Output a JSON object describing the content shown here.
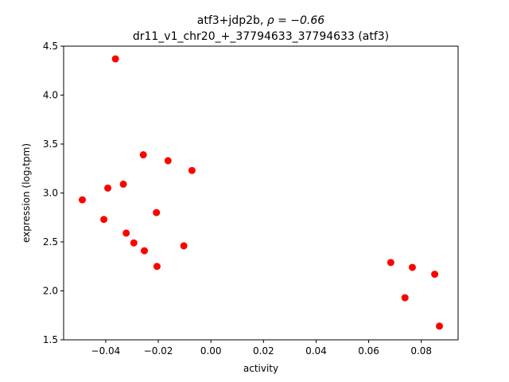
{
  "chart_data": {
    "type": "scatter",
    "title_prefix": "atf3+jdp2b, ",
    "title_rho": "ρ = −0.66",
    "subtitle": "dr11_v1_chr20_+_37794633_37794633 (atf3)",
    "xlabel": "activity",
    "ylabel": "expression (log₂tpm)",
    "xlim": [
      -0.056,
      0.094
    ],
    "ylim": [
      1.5,
      4.5
    ],
    "x_ticks": [
      -0.04,
      -0.02,
      0.0,
      0.02,
      0.04,
      0.06,
      0.08
    ],
    "x_tick_labels": [
      "−0.04",
      "−0.02",
      "0.00",
      "0.02",
      "0.04",
      "0.06",
      "0.08"
    ],
    "y_ticks": [
      1.5,
      2.0,
      2.5,
      3.0,
      3.5,
      4.0,
      4.5
    ],
    "y_tick_labels": [
      "1.5",
      "2.0",
      "2.5",
      "3.0",
      "3.5",
      "4.0",
      "4.5"
    ],
    "grid": false,
    "marker_color": "#ff0000",
    "points": [
      {
        "x": -0.0363,
        "y": 4.37
      },
      {
        "x": -0.0257,
        "y": 3.39
      },
      {
        "x": -0.0163,
        "y": 3.33
      },
      {
        "x": -0.0072,
        "y": 3.23
      },
      {
        "x": -0.0333,
        "y": 3.09
      },
      {
        "x": -0.0392,
        "y": 3.05
      },
      {
        "x": -0.0489,
        "y": 2.93
      },
      {
        "x": -0.0207,
        "y": 2.8
      },
      {
        "x": -0.0407,
        "y": 2.73
      },
      {
        "x": -0.0322,
        "y": 2.59
      },
      {
        "x": -0.0293,
        "y": 2.49
      },
      {
        "x": -0.0103,
        "y": 2.46
      },
      {
        "x": -0.0253,
        "y": 2.41
      },
      {
        "x": -0.0205,
        "y": 2.25
      },
      {
        "x": 0.0684,
        "y": 2.29
      },
      {
        "x": 0.0766,
        "y": 2.24
      },
      {
        "x": 0.0851,
        "y": 2.17
      },
      {
        "x": 0.0738,
        "y": 1.93
      },
      {
        "x": 0.0869,
        "y": 1.64
      }
    ]
  }
}
